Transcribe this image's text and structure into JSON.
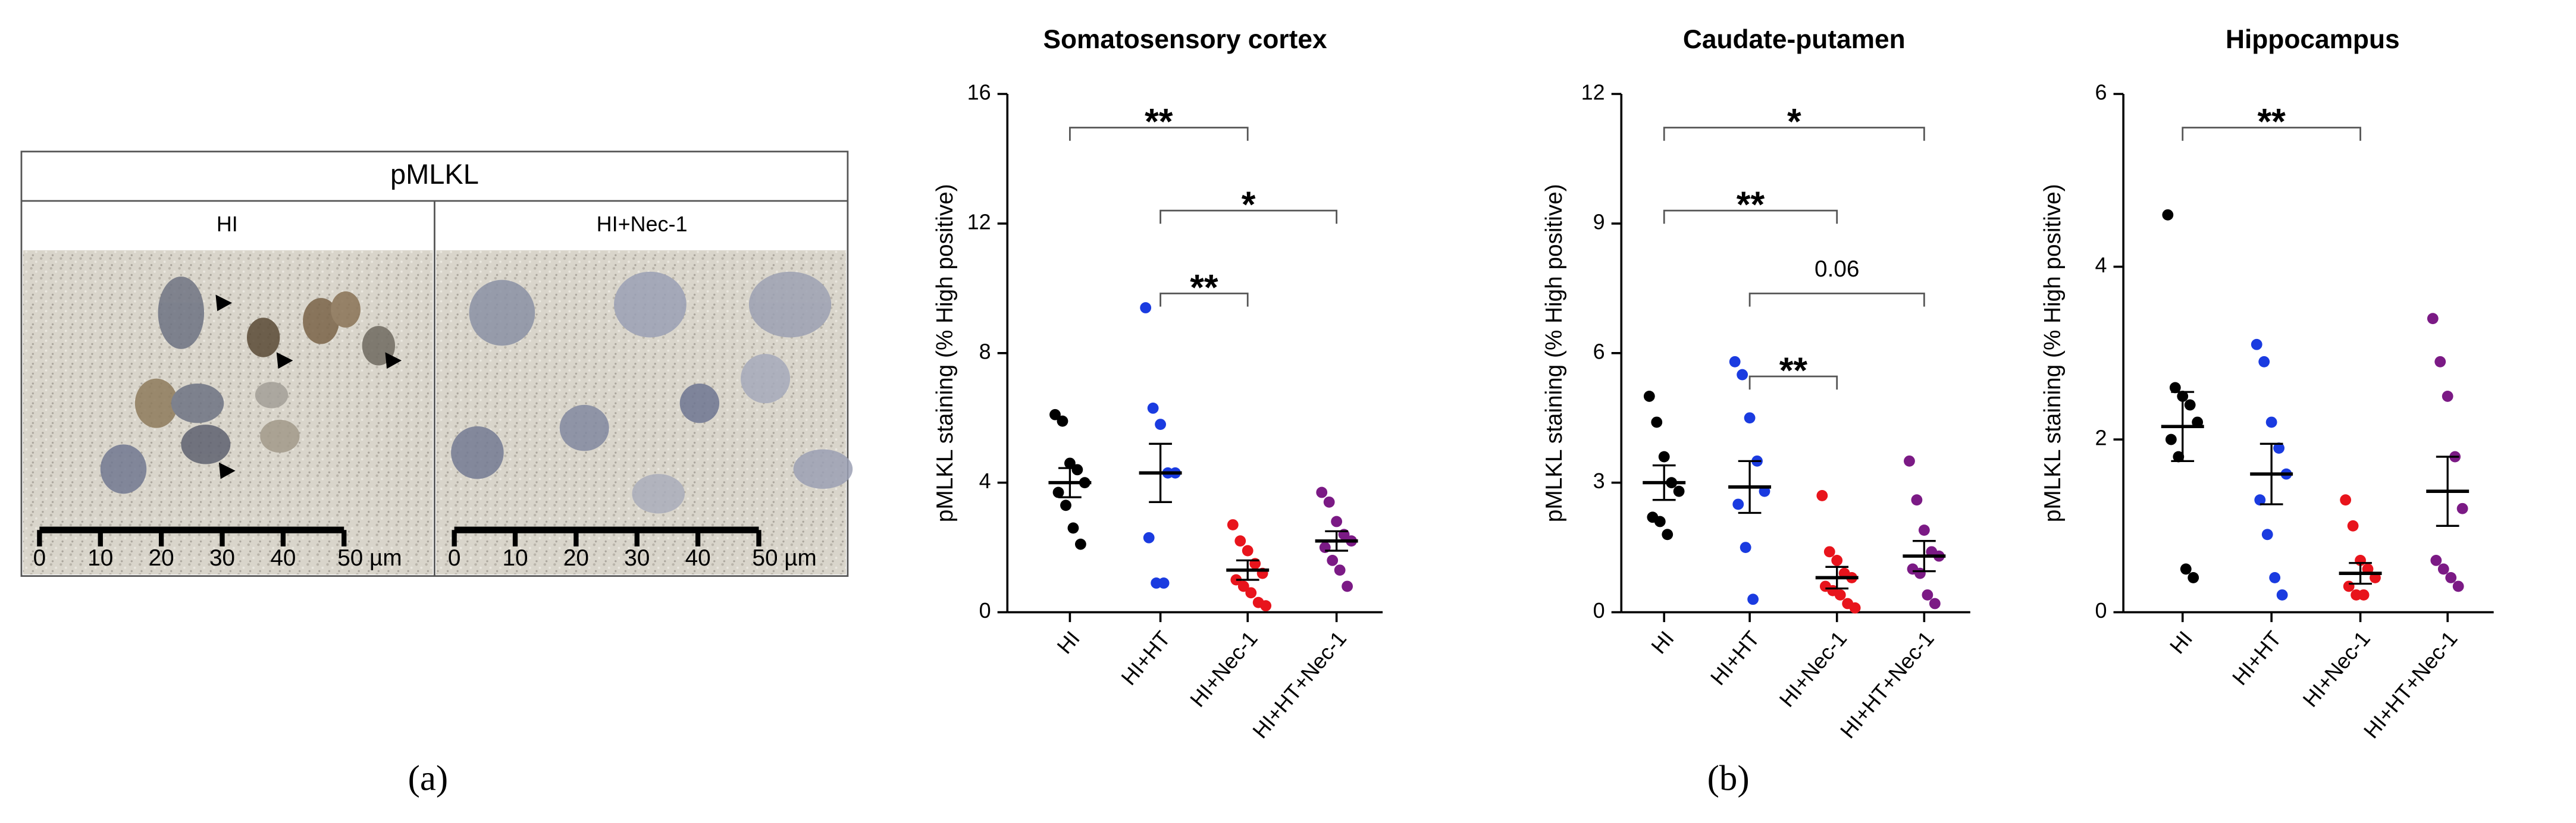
{
  "figure": {
    "panel_a": {
      "title": "pMLKL",
      "left_label": "HI",
      "right_label": "HI+Nec-1",
      "scale_labels": [
        "0",
        "10",
        "20",
        "30",
        "40",
        "50 µm"
      ],
      "caption": "(a)"
    },
    "caption_b": "(b)"
  },
  "chart_data": [
    {
      "type": "scatter",
      "title": "Somatosensory cortex",
      "ylabel": "pMLKL staining (% High positive)",
      "ylim": [
        0,
        16
      ],
      "yticks": [
        0,
        4,
        8,
        12,
        16
      ],
      "categories": [
        "HI",
        "HI+HT",
        "HI+Nec-1",
        "HI+HT+Nec-1"
      ],
      "series": [
        {
          "name": "HI",
          "color": "#000000",
          "values": [
            6.1,
            5.9,
            4.6,
            4.4,
            4.0,
            3.7,
            3.3,
            2.6,
            2.1
          ],
          "mean": 4.0,
          "sem": 0.45
        },
        {
          "name": "HI+HT",
          "color": "#1a3be0",
          "values": [
            9.4,
            6.3,
            5.8,
            4.3,
            4.3,
            2.3,
            0.9,
            0.9
          ],
          "mean": 4.3,
          "sem": 0.9
        },
        {
          "name": "HI+Nec-1",
          "color": "#e8141c",
          "values": [
            2.7,
            2.2,
            1.9,
            1.5,
            1.2,
            1.0,
            0.8,
            0.6,
            0.3,
            0.2
          ],
          "mean": 1.3,
          "sem": 0.3
        },
        {
          "name": "HI+HT+Nec-1",
          "color": "#7b1a85",
          "values": [
            3.7,
            3.4,
            2.8,
            2.4,
            2.2,
            2.0,
            1.6,
            1.3,
            0.8
          ],
          "mean": 2.2,
          "sem": 0.3
        }
      ],
      "annotations": [
        {
          "label": "**",
          "from": "HI",
          "to": "HI+Nec-1"
        },
        {
          "label": "*",
          "from": "HI+HT",
          "to": "HI+HT+Nec-1"
        },
        {
          "label": "**",
          "from": "HI+HT",
          "to": "HI+Nec-1"
        }
      ]
    },
    {
      "type": "scatter",
      "title": "Caudate-putamen",
      "ylabel": "pMLKL staining (% High positive)",
      "ylim": [
        0,
        12
      ],
      "yticks": [
        0,
        3,
        6,
        9,
        12
      ],
      "categories": [
        "HI",
        "HI+HT",
        "HI+Nec-1",
        "HI+HT+Nec-1"
      ],
      "series": [
        {
          "name": "HI",
          "color": "#000000",
          "values": [
            5.0,
            4.4,
            3.6,
            3.0,
            2.8,
            2.2,
            2.1,
            1.8
          ],
          "mean": 3.0,
          "sem": 0.4
        },
        {
          "name": "HI+HT",
          "color": "#1a3be0",
          "values": [
            5.8,
            5.5,
            4.5,
            3.5,
            2.8,
            2.5,
            1.5,
            0.3
          ],
          "mean": 2.9,
          "sem": 0.6
        },
        {
          "name": "HI+Nec-1",
          "color": "#e8141c",
          "values": [
            2.7,
            1.4,
            1.2,
            0.9,
            0.8,
            0.6,
            0.5,
            0.4,
            0.2,
            0.1
          ],
          "mean": 0.8,
          "sem": 0.25
        },
        {
          "name": "HI+HT+Nec-1",
          "color": "#7b1a85",
          "values": [
            3.5,
            2.6,
            1.9,
            1.4,
            1.3,
            1.0,
            0.9,
            0.4,
            0.2
          ],
          "mean": 1.3,
          "sem": 0.35
        }
      ],
      "annotations": [
        {
          "label": "*",
          "from": "HI",
          "to": "HI+HT+Nec-1"
        },
        {
          "label": "**",
          "from": "HI",
          "to": "HI+Nec-1"
        },
        {
          "label": "0.06",
          "from": "HI+HT",
          "to": "HI+HT+Nec-1"
        },
        {
          "label": "**",
          "from": "HI+HT",
          "to": "HI+Nec-1"
        }
      ]
    },
    {
      "type": "scatter",
      "title": "Hippocampus",
      "ylabel": "pMLKL staining (% High positive)",
      "ylim": [
        0,
        6
      ],
      "yticks": [
        0,
        2,
        4,
        6
      ],
      "categories": [
        "HI",
        "HI+HT",
        "HI+Nec-1",
        "HI+HT+Nec-1"
      ],
      "series": [
        {
          "name": "HI",
          "color": "#000000",
          "values": [
            4.6,
            2.6,
            2.5,
            2.4,
            2.2,
            2.0,
            1.8,
            0.5,
            0.4
          ],
          "mean": 2.15,
          "sem": 0.4
        },
        {
          "name": "HI+HT",
          "color": "#1a3be0",
          "values": [
            3.1,
            2.9,
            2.2,
            1.9,
            1.6,
            1.3,
            0.9,
            0.4,
            0.2
          ],
          "mean": 1.6,
          "sem": 0.35
        },
        {
          "name": "HI+Nec-1",
          "color": "#e8141c",
          "values": [
            1.3,
            1.0,
            0.6,
            0.5,
            0.4,
            0.3,
            0.2,
            0.2
          ],
          "mean": 0.45,
          "sem": 0.12
        },
        {
          "name": "HI+HT+Nec-1",
          "color": "#7b1a85",
          "values": [
            3.4,
            2.9,
            2.5,
            1.8,
            1.2,
            0.6,
            0.5,
            0.4,
            0.3
          ],
          "mean": 1.4,
          "sem": 0.4
        }
      ],
      "annotations": [
        {
          "label": "**",
          "from": "HI",
          "to": "HI+Nec-1"
        }
      ]
    }
  ]
}
